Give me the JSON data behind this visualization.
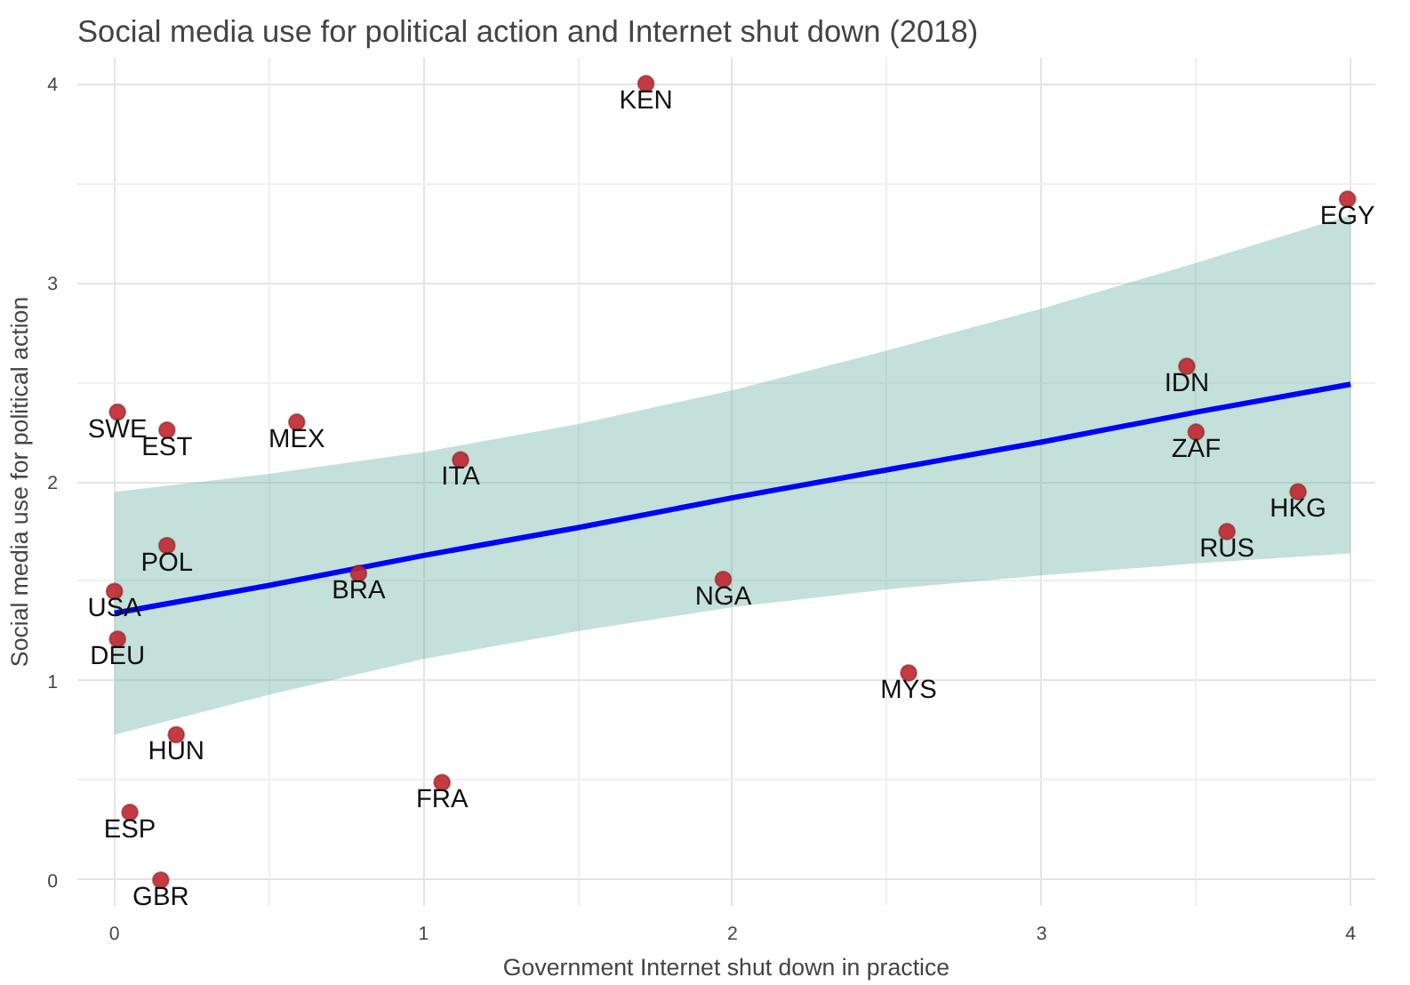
{
  "chart_data": {
    "type": "scatter",
    "title": "Social media use for political action and Internet shut down (2018)",
    "xlabel": "Government Internet shut down in practice",
    "ylabel": "Social media use for political action",
    "xlim": [
      -0.12,
      4.08
    ],
    "ylim": [
      -0.13,
      4.13
    ],
    "xticks": [
      0,
      1,
      2,
      3,
      4
    ],
    "yticks": [
      0,
      1,
      2,
      3,
      4
    ],
    "grid": true,
    "series": [
      {
        "marker": "circle",
        "color": "#c0262d",
        "x": [
          1.72,
          3.99,
          3.47,
          3.5,
          3.83,
          3.6,
          0.01,
          0.17,
          0.59,
          1.12,
          0.17,
          0.79,
          0.0,
          1.97,
          0.01,
          2.57,
          0.2,
          1.06,
          0.05,
          0.15
        ],
        "values": [
          4.0,
          3.42,
          2.58,
          2.25,
          1.95,
          1.75,
          2.35,
          2.26,
          2.3,
          2.11,
          1.68,
          1.54,
          1.45,
          1.51,
          1.21,
          1.04,
          0.73,
          0.49,
          0.34,
          0.0
        ]
      },
      {
        "type": "line",
        "color": "#0000ff",
        "x": [
          0,
          0.5,
          1,
          1.5,
          2,
          2.5,
          3,
          3.5,
          4
        ],
        "values": [
          1.34,
          1.48,
          1.63,
          1.77,
          1.92,
          2.06,
          2.2,
          2.35,
          2.49
        ],
        "lower": [
          0.73,
          0.93,
          1.11,
          1.25,
          1.37,
          1.46,
          1.53,
          1.59,
          1.64
        ],
        "upper": [
          1.95,
          2.04,
          2.15,
          2.29,
          2.46,
          2.66,
          2.87,
          3.1,
          3.34
        ]
      }
    ],
    "annotations": [
      {
        "text": "KEN",
        "x": 1.72,
        "y": 4.0
      },
      {
        "text": "EGY",
        "x": 3.99,
        "y": 3.42
      },
      {
        "text": "IDN",
        "x": 3.47,
        "y": 2.58
      },
      {
        "text": "ZAF",
        "x": 3.5,
        "y": 2.25
      },
      {
        "text": "HKG",
        "x": 3.83,
        "y": 1.95
      },
      {
        "text": "RUS",
        "x": 3.6,
        "y": 1.75
      },
      {
        "text": "SWE",
        "x": 0.01,
        "y": 2.35
      },
      {
        "text": "EST",
        "x": 0.17,
        "y": 2.26
      },
      {
        "text": "MEX",
        "x": 0.59,
        "y": 2.3
      },
      {
        "text": "ITA",
        "x": 1.12,
        "y": 2.11
      },
      {
        "text": "POL",
        "x": 0.17,
        "y": 1.68
      },
      {
        "text": "BRA",
        "x": 0.79,
        "y": 1.54
      },
      {
        "text": "USA",
        "x": 0.0,
        "y": 1.45
      },
      {
        "text": "NGA",
        "x": 1.97,
        "y": 1.51
      },
      {
        "text": "DEU",
        "x": 0.01,
        "y": 1.21
      },
      {
        "text": "MYS",
        "x": 2.57,
        "y": 1.04
      },
      {
        "text": "HUN",
        "x": 0.2,
        "y": 0.73
      },
      {
        "text": "FRA",
        "x": 1.06,
        "y": 0.49
      },
      {
        "text": "ESP",
        "x": 0.05,
        "y": 0.34
      },
      {
        "text": "GBR",
        "x": 0.15,
        "y": 0.0
      }
    ]
  }
}
